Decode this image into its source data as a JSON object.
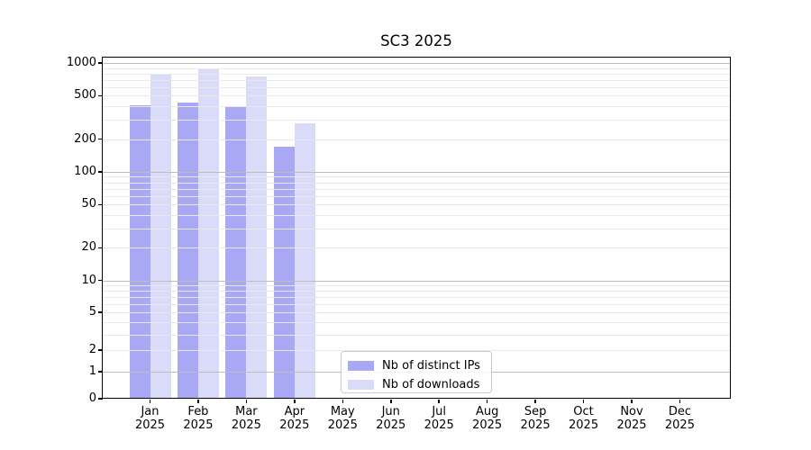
{
  "chart_data": {
    "type": "bar",
    "title": "SC3 2025",
    "categories": [
      "Jan 2025",
      "Feb 2025",
      "Mar 2025",
      "Apr 2025",
      "May 2025",
      "Jun 2025",
      "Jul 2025",
      "Aug 2025",
      "Sep 2025",
      "Oct 2025",
      "Nov 2025",
      "Dec 2025"
    ],
    "series": [
      {
        "key": "distinct-ips",
        "name": "Nb of distinct IPs",
        "color": "#a8a8f5",
        "values": [
          405,
          435,
          395,
          170,
          null,
          null,
          null,
          null,
          null,
          null,
          null,
          null
        ]
      },
      {
        "key": "downloads",
        "name": "Nb of downloads",
        "color": "#dadaf9",
        "values": [
          795,
          870,
          745,
          280,
          null,
          null,
          null,
          null,
          null,
          null,
          null,
          null
        ]
      }
    ],
    "y_axis": {
      "scale": "log-like (asinh), linear near zero",
      "ticks": [
        0,
        1,
        2,
        5,
        10,
        20,
        50,
        100,
        200,
        500,
        1000
      ],
      "range": [
        0,
        1000
      ],
      "major_grid_values": [
        1,
        10,
        100,
        1000
      ]
    },
    "grid": "horizontal major + minor log gridlines, drawn over bars",
    "legend_position": "inside plot, lower center-left"
  },
  "colors": {
    "major_grid": "#bdbdbd",
    "minor_grid": "#e9e9e9",
    "spine": "#000000",
    "background": "#ffffff"
  }
}
